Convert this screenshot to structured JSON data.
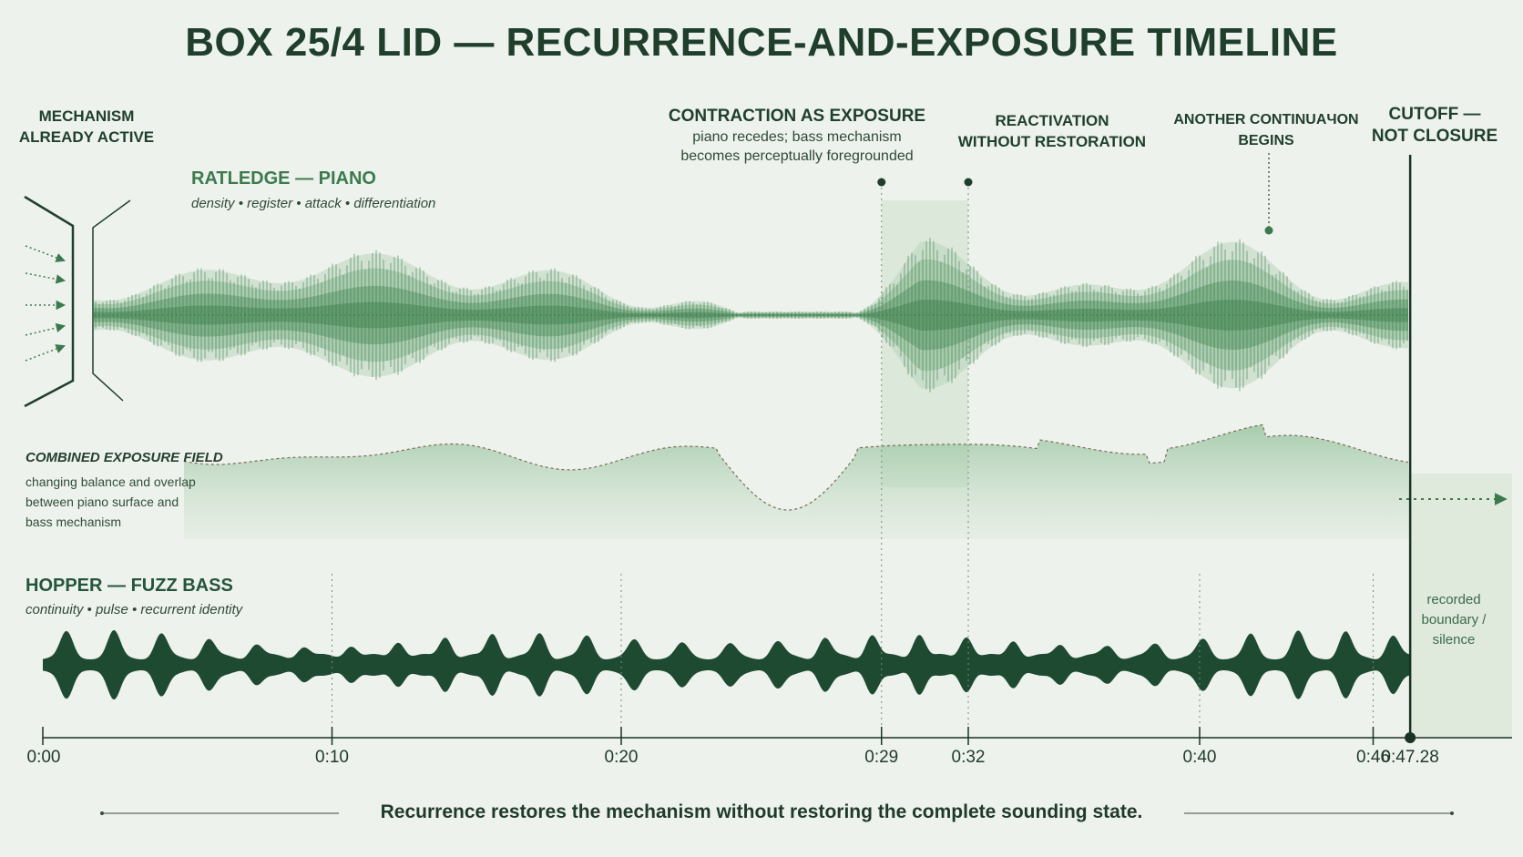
{
  "title": "BOX 25/4 LID — RECURRENCE-AND-EXPOSURE TIMELINE",
  "annotations": {
    "mechanism_active": [
      "MECHANISM",
      "ALREADY ACTIVE"
    ],
    "contraction_title": "CONTRACTION AS EXPOSURE",
    "contraction_desc": [
      "piano recedes; bass mechanism",
      "becomes perceptually foregrounded"
    ],
    "reactivation": [
      "REACTIVATION",
      "WITHOUT RESTORATION"
    ],
    "another_continuation": [
      "ANOTHER CONTINUAЧON",
      "BEGINS"
    ],
    "cutoff": [
      "CUTOFF —",
      "NOT CLOSURE"
    ]
  },
  "tracks": {
    "piano": {
      "name": "RATLEDGE — PIANO",
      "desc": "density • register • attack • differentiation"
    },
    "field": {
      "name": "COMBINED EXPOSURE FIELD",
      "desc": [
        "changing balance and overlap",
        "between piano surface and",
        "bass mechanism"
      ]
    },
    "bass": {
      "name": "HOPPER — FUZZ BASS",
      "desc": "continuity • pulse • recurrent identity"
    }
  },
  "silence_label": [
    "recorded",
    "boundary /",
    "silence"
  ],
  "timeline": {
    "ticks": [
      {
        "t": 0,
        "label": "0:00"
      },
      {
        "t": 10,
        "label": "0:10"
      },
      {
        "t": 20,
        "label": "0:20"
      },
      {
        "t": 29,
        "label": "0:29"
      },
      {
        "t": 32,
        "label": "0:32"
      },
      {
        "t": 40,
        "label": "0:40"
      },
      {
        "t": 46,
        "label": "0:46"
      },
      {
        "t": 47.28,
        "label": "0:47.28"
      }
    ],
    "contraction_window": [
      29,
      32
    ],
    "cutoff": 47.28
  },
  "footer": "Recurrence restores the mechanism without restoring the complete sounding state.",
  "colors": {
    "background": "#eef2ec",
    "piano_light": "#b9d6bd",
    "piano_mid": "#8dbb94",
    "piano_dark": "#5f9a6b",
    "bass": "#1e4a31",
    "text_dark": "#1f3f2c",
    "accent_green": "#3c7a4e"
  }
}
